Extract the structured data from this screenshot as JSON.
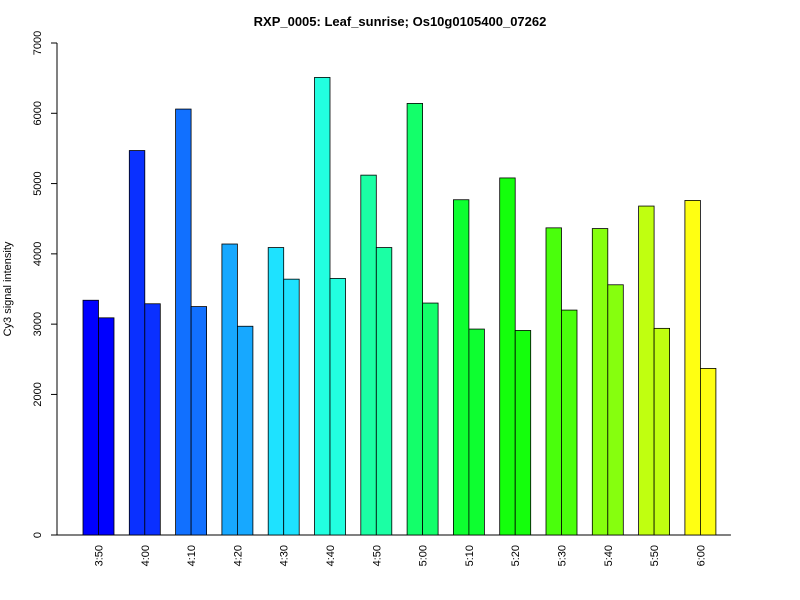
{
  "chart_data": {
    "type": "bar",
    "title": "RXP_0005: Leaf_sunrise; Os10g0105400_07262",
    "xlabel": "",
    "ylabel": "Cy3 signal intensity",
    "ylim": [
      0,
      7000
    ],
    "yticks": [
      0,
      2000,
      3000,
      4000,
      5000,
      6000,
      7000
    ],
    "grid": false,
    "legend": "none",
    "categories": [
      "3:50",
      "4:00",
      "4:10",
      "4:20",
      "4:30",
      "4:40",
      "4:50",
      "5:00",
      "5:10",
      "5:20",
      "5:30",
      "5:40",
      "5:50",
      "6:00"
    ],
    "colors": [
      "#0000FF",
      "#0A30FF",
      "#1170FF",
      "#17A8FF",
      "#1EE2FF",
      "#22FFE0",
      "#1BFFA4",
      "#13FF6A",
      "#0DFF30",
      "#14FF0C",
      "#4AFF0C",
      "#86FF0E",
      "#C0FF10",
      "#FFFF12"
    ],
    "series": [
      {
        "values": [
          3340,
          5470,
          6060,
          4140,
          4090,
          6510,
          5120,
          6140,
          4770,
          5080,
          4370,
          4360,
          4680,
          4760
        ]
      },
      {
        "values": [
          3090,
          3290,
          3250,
          2970,
          3640,
          3650,
          4090,
          3300,
          2930,
          2910,
          3200,
          3560,
          2940,
          2370
        ]
      }
    ]
  }
}
